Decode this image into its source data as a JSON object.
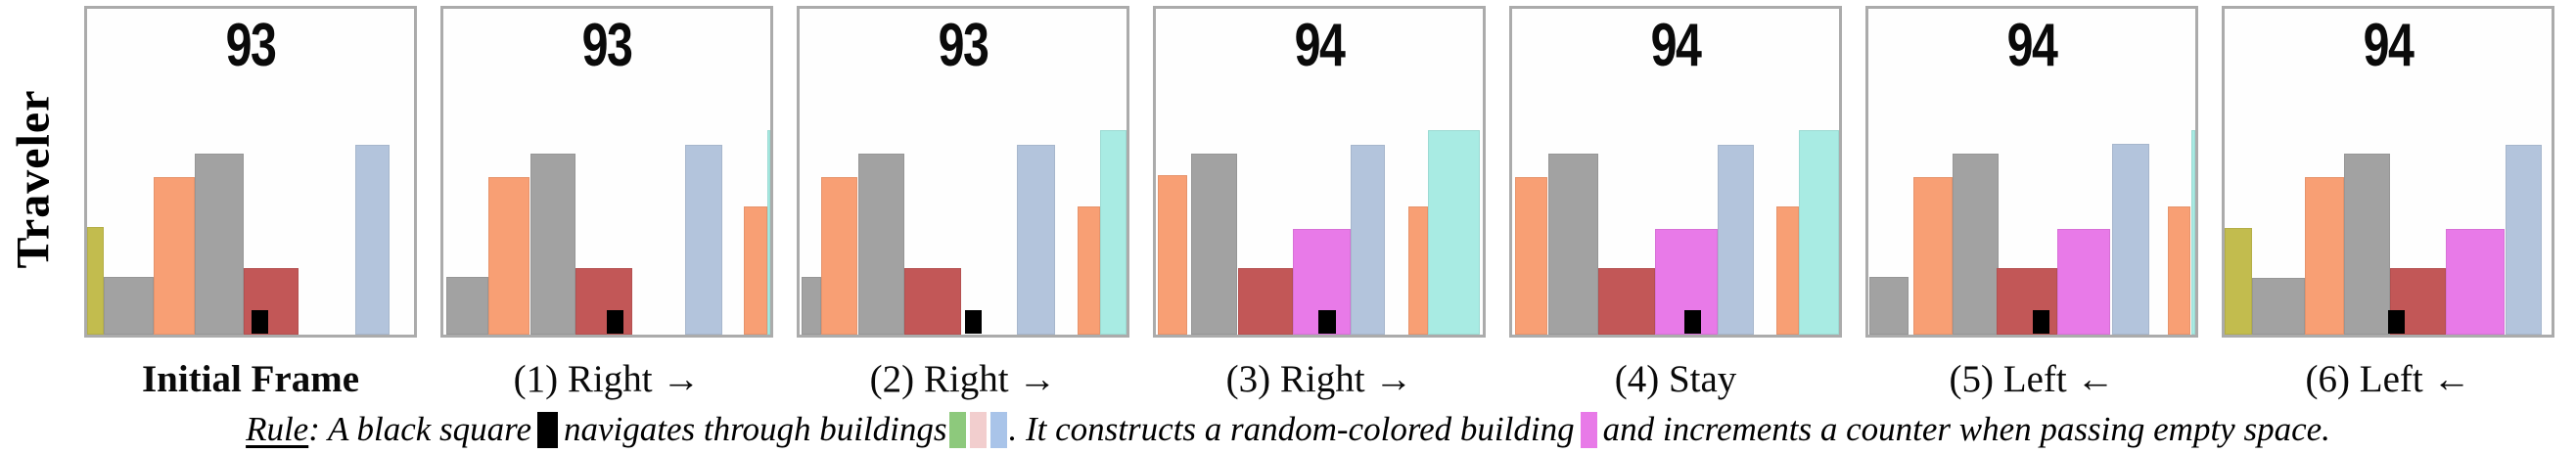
{
  "row_label": "Traveler",
  "colors": {
    "yellow": "#c2bc4e",
    "gray": "#a2a2a2",
    "orange": "#f89f74",
    "darkred": "#c25757",
    "magenta": "#e87ae8",
    "lightblue": "#b3c4dc",
    "cyan": "#a8ebe3",
    "black": "#000000",
    "frame_border": "#ababab",
    "swatch_green": "#8dc97c",
    "swatch_pink": "#f2cece",
    "swatch_blue": "#a9c4e9"
  },
  "frames": [
    {
      "counter": "93",
      "caption": "Initial Frame",
      "bars": [
        {
          "color": "yellow",
          "x": 0,
          "w": 5.1,
          "h": 33.0
        },
        {
          "color": "gray",
          "x": 5.1,
          "w": 15.4,
          "h": 17.7
        },
        {
          "color": "orange",
          "x": 20.5,
          "w": 12.5,
          "h": 48.3
        },
        {
          "color": "gray",
          "x": 33.0,
          "w": 14.9,
          "h": 55.7
        },
        {
          "color": "darkred",
          "x": 47.9,
          "w": 16.7,
          "h": 20.5
        },
        {
          "color": "lightblue",
          "x": 82.1,
          "w": 10.5,
          "h": 58.3
        }
      ],
      "traveler": {
        "x": 50.3,
        "w": 5.2,
        "h": 7.2
      }
    },
    {
      "counter": "93",
      "caption": "(1) Right →",
      "bars": [
        {
          "color": "gray",
          "x": 0.9,
          "w": 12.9,
          "h": 17.7
        },
        {
          "color": "orange",
          "x": 13.8,
          "w": 12.7,
          "h": 48.3
        },
        {
          "color": "gray",
          "x": 26.5,
          "w": 13.8,
          "h": 55.7
        },
        {
          "color": "darkred",
          "x": 40.3,
          "w": 17.6,
          "h": 20.5
        },
        {
          "color": "lightblue",
          "x": 74.1,
          "w": 11.2,
          "h": 58.3
        },
        {
          "color": "orange",
          "x": 91.8,
          "w": 7.3,
          "h": 39.2
        },
        {
          "color": "cyan",
          "x": 99.1,
          "w": 0.9,
          "h": 62.8
        }
      ],
      "traveler": {
        "x": 50.0,
        "w": 5.0,
        "h": 7.2
      }
    },
    {
      "counter": "93",
      "caption": "(2) Right →",
      "bars": [
        {
          "color": "gray",
          "x": 0.6,
          "w": 6.0,
          "h": 17.7
        },
        {
          "color": "orange",
          "x": 6.6,
          "w": 11.0,
          "h": 48.3
        },
        {
          "color": "gray",
          "x": 17.9,
          "w": 14.0,
          "h": 55.7
        },
        {
          "color": "darkred",
          "x": 31.9,
          "w": 17.4,
          "h": 20.5
        },
        {
          "color": "lightblue",
          "x": 66.6,
          "w": 11.6,
          "h": 58.3
        },
        {
          "color": "orange",
          "x": 85.1,
          "w": 6.8,
          "h": 39.2
        },
        {
          "color": "cyan",
          "x": 91.9,
          "w": 8.1,
          "h": 62.8
        }
      ],
      "traveler": {
        "x": 50.7,
        "w": 5.1,
        "h": 7.2
      }
    },
    {
      "counter": "94",
      "caption": "(3) Right →",
      "bars": [
        {
          "color": "orange",
          "x": 0.6,
          "w": 9.1,
          "h": 49.0
        },
        {
          "color": "gray",
          "x": 10.9,
          "w": 14.1,
          "h": 55.7
        },
        {
          "color": "darkred",
          "x": 25.0,
          "w": 16.8,
          "h": 20.5
        },
        {
          "color": "magenta",
          "x": 41.8,
          "w": 17.9,
          "h": 32.4
        },
        {
          "color": "lightblue",
          "x": 59.7,
          "w": 10.3,
          "h": 58.3
        },
        {
          "color": "orange",
          "x": 77.1,
          "w": 6.1,
          "h": 39.2
        },
        {
          "color": "cyan",
          "x": 83.2,
          "w": 15.9,
          "h": 62.8
        }
      ],
      "traveler": {
        "x": 49.7,
        "w": 5.3,
        "h": 7.2
      }
    },
    {
      "counter": "94",
      "caption": "(4) Stay",
      "bars": [
        {
          "color": "orange",
          "x": 0.9,
          "w": 9.9,
          "h": 48.3
        },
        {
          "color": "gray",
          "x": 11.1,
          "w": 15.2,
          "h": 55.7
        },
        {
          "color": "darkred",
          "x": 26.3,
          "w": 17.4,
          "h": 20.5
        },
        {
          "color": "magenta",
          "x": 43.7,
          "w": 19.1,
          "h": 32.4
        },
        {
          "color": "lightblue",
          "x": 62.8,
          "w": 11.2,
          "h": 58.3
        },
        {
          "color": "orange",
          "x": 80.8,
          "w": 6.8,
          "h": 39.2
        },
        {
          "color": "cyan",
          "x": 87.6,
          "w": 12.4,
          "h": 62.8
        }
      ],
      "traveler": {
        "x": 52.6,
        "w": 5.1,
        "h": 7.2
      }
    },
    {
      "counter": "94",
      "caption": "(5) Left ←",
      "bars": [
        {
          "color": "gray",
          "x": 0.3,
          "w": 12.1,
          "h": 17.7
        },
        {
          "color": "orange",
          "x": 13.9,
          "w": 11.8,
          "h": 48.3
        },
        {
          "color": "gray",
          "x": 25.7,
          "w": 14.2,
          "h": 55.7
        },
        {
          "color": "darkred",
          "x": 39.3,
          "w": 18.4,
          "h": 20.5
        },
        {
          "color": "magenta",
          "x": 57.7,
          "w": 16.3,
          "h": 32.4
        },
        {
          "color": "lightblue",
          "x": 74.6,
          "w": 11.2,
          "h": 58.5
        },
        {
          "color": "orange",
          "x": 91.7,
          "w": 6.8,
          "h": 39.2
        },
        {
          "color": "cyan",
          "x": 98.8,
          "w": 1.2,
          "h": 62.8
        }
      ],
      "traveler": {
        "x": 50.3,
        "w": 5.0,
        "h": 7.2
      }
    },
    {
      "counter": "94",
      "caption": "(6) Left ←",
      "bars": [
        {
          "color": "yellow",
          "x": 0,
          "w": 8.3,
          "h": 32.8
        },
        {
          "color": "gray",
          "x": 8.3,
          "w": 16.3,
          "h": 17.5
        },
        {
          "color": "orange",
          "x": 24.6,
          "w": 11.8,
          "h": 48.3
        },
        {
          "color": "gray",
          "x": 36.4,
          "w": 14.2,
          "h": 55.7
        },
        {
          "color": "darkred",
          "x": 50.6,
          "w": 17.2,
          "h": 20.5
        },
        {
          "color": "magenta",
          "x": 67.8,
          "w": 17.7,
          "h": 32.4
        },
        {
          "color": "lightblue",
          "x": 85.8,
          "w": 11.3,
          "h": 58.3
        }
      ],
      "traveler": {
        "x": 50.0,
        "w": 5.0,
        "h": 7.2
      }
    }
  ],
  "rule": {
    "label": "Rule",
    "seg1": ": A black square",
    "seg2": "navigates through buildings",
    "seg3": ". It constructs a random-colored building",
    "seg4": "and increments a counter when passing empty space.",
    "traveler_swatch": "black",
    "building_swatches": [
      "swatch_green",
      "swatch_pink",
      "swatch_blue"
    ],
    "constructed_swatch": "magenta"
  }
}
